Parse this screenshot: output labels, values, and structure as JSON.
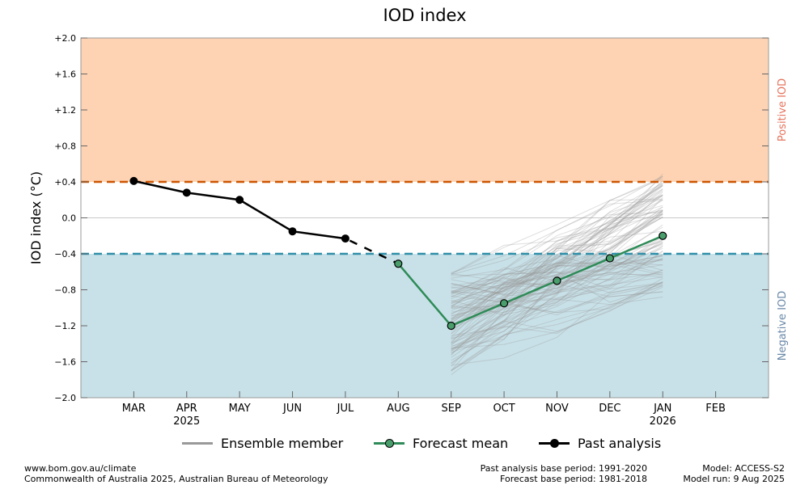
{
  "chart_data": {
    "type": "line",
    "title": "IOD index",
    "ylabel": "IOD index (°C)",
    "ylim": [
      -2.0,
      2.0
    ],
    "yticks": [
      {
        "value": 2.0,
        "label": "+2.0"
      },
      {
        "value": 1.6,
        "label": "+1.6"
      },
      {
        "value": 1.2,
        "label": "+1.2"
      },
      {
        "value": 0.8,
        "label": "+0.8"
      },
      {
        "value": 0.4,
        "label": "+0.4"
      },
      {
        "value": 0.0,
        "label": "0.0"
      },
      {
        "value": -0.4,
        "label": "−0.4"
      },
      {
        "value": -0.8,
        "label": "−0.8"
      },
      {
        "value": -1.2,
        "label": "−1.2"
      },
      {
        "value": -1.6,
        "label": "−1.6"
      },
      {
        "value": -2.0,
        "label": "−2.0"
      }
    ],
    "xlim": [
      -1,
      12
    ],
    "months": [
      {
        "x": 0,
        "label": "MAR",
        "year": ""
      },
      {
        "x": 1,
        "label": "APR",
        "year": "2025"
      },
      {
        "x": 2,
        "label": "MAY",
        "year": ""
      },
      {
        "x": 3,
        "label": "JUN",
        "year": ""
      },
      {
        "x": 4,
        "label": "JUL",
        "year": ""
      },
      {
        "x": 5,
        "label": "AUG",
        "year": ""
      },
      {
        "x": 6,
        "label": "SEP",
        "year": ""
      },
      {
        "x": 7,
        "label": "OCT",
        "year": ""
      },
      {
        "x": 8,
        "label": "NOV",
        "year": ""
      },
      {
        "x": 9,
        "label": "DEC",
        "year": ""
      },
      {
        "x": 10,
        "label": "JAN",
        "year": "2026"
      },
      {
        "x": 11,
        "label": "FEB",
        "year": ""
      }
    ],
    "thresholds": {
      "positive": 0.4,
      "negative": -0.4
    },
    "zones": {
      "positive_label": "Positive IOD",
      "negative_label": "Negative IOD"
    },
    "series": [
      {
        "name": "Past analysis",
        "x": [
          0,
          1,
          2,
          3,
          4
        ],
        "values": [
          0.41,
          0.28,
          0.2,
          -0.15,
          -0.23
        ]
      },
      {
        "name": "Forecast mean",
        "x": [
          5,
          6,
          7,
          8,
          9,
          10
        ],
        "values": [
          -0.51,
          -1.2,
          -0.95,
          -0.7,
          -0.45,
          -0.2
        ]
      }
    ],
    "ensemble": {
      "name": "Ensemble member",
      "x_start": 6,
      "x_end": 10,
      "count": 99,
      "start_range": [
        -1.75,
        -0.6
      ],
      "end_range": [
        -0.9,
        0.5
      ]
    },
    "colors": {
      "positive_fill": "#fed3b3",
      "negative_fill": "#c8e1e8",
      "positive_line": "#cc5500",
      "negative_line": "#2e8fa8",
      "positive_text": "#e6735c",
      "negative_text": "#6a88a8",
      "forecast": "#2e8b57",
      "forecast_marker": "#4a9e6c",
      "past": "#000000",
      "ensemble": "#999999",
      "zero_line": "#c8c8c8",
      "frame": "#999999"
    }
  },
  "legend": {
    "ensemble": "Ensemble member",
    "forecast": "Forecast mean",
    "past": "Past analysis"
  },
  "footer": {
    "left_line1": "www.bom.gov.au/climate",
    "left_line2": "Commonwealth of Australia 2025, Australian Bureau of Meteorology",
    "center_line1": "Past analysis base period: 1991-2020",
    "center_line2": "Forecast base period: 1981-2018",
    "right_line1": "Model: ACCESS-S2",
    "right_line2": "Model run: 9 Aug 2025"
  }
}
